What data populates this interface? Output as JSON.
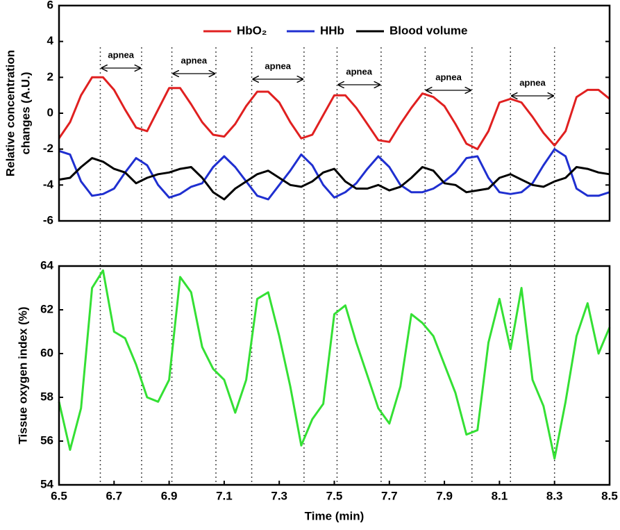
{
  "chart_data": [
    {
      "type": "line",
      "ylabel_lines": [
        "Relative concentration",
        "changes (A.U.)"
      ],
      "x": [
        6.5,
        6.54,
        6.58,
        6.62,
        6.66,
        6.7,
        6.74,
        6.78,
        6.82,
        6.86,
        6.9,
        6.94,
        6.98,
        7.02,
        7.06,
        7.1,
        7.14,
        7.18,
        7.22,
        7.26,
        7.3,
        7.34,
        7.38,
        7.42,
        7.46,
        7.5,
        7.54,
        7.58,
        7.62,
        7.66,
        7.7,
        7.74,
        7.78,
        7.82,
        7.86,
        7.9,
        7.94,
        7.98,
        8.02,
        8.06,
        8.1,
        8.14,
        8.18,
        8.22,
        8.26,
        8.3,
        8.34,
        8.38,
        8.42,
        8.46,
        8.5
      ],
      "series": [
        {
          "name": "HbO₂",
          "color": "#e02020",
          "values": [
            -1.4,
            -0.5,
            1.0,
            2.0,
            2.0,
            1.3,
            0.2,
            -0.8,
            -1.0,
            0.2,
            1.4,
            1.4,
            0.5,
            -0.5,
            -1.2,
            -1.3,
            -0.6,
            0.4,
            1.2,
            1.2,
            0.6,
            -0.5,
            -1.4,
            -1.2,
            -0.1,
            1.0,
            1.0,
            0.3,
            -0.6,
            -1.5,
            -1.6,
            -0.6,
            0.3,
            1.1,
            0.9,
            0.4,
            -0.6,
            -1.7,
            -2.0,
            -1.0,
            0.6,
            0.8,
            0.6,
            -0.2,
            -1.1,
            -1.8,
            -1.0,
            0.9,
            1.3,
            1.3,
            0.8
          ]
        },
        {
          "name": "HHb",
          "color": "#1f2fd0",
          "values": [
            -2.1,
            -2.3,
            -3.8,
            -4.6,
            -4.5,
            -4.2,
            -3.3,
            -2.5,
            -2.9,
            -4.0,
            -4.7,
            -4.5,
            -4.1,
            -3.9,
            -3.0,
            -2.4,
            -3.0,
            -3.8,
            -4.6,
            -4.8,
            -4.0,
            -3.2,
            -2.3,
            -2.9,
            -4.0,
            -4.7,
            -4.4,
            -3.9,
            -3.1,
            -2.4,
            -3.0,
            -4.0,
            -4.4,
            -4.4,
            -4.2,
            -3.8,
            -3.3,
            -2.5,
            -2.4,
            -3.6,
            -4.4,
            -4.5,
            -4.4,
            -3.9,
            -2.9,
            -2.0,
            -2.4,
            -4.2,
            -4.6,
            -4.6,
            -4.4
          ]
        },
        {
          "name": "Blood volume",
          "color": "#000000",
          "values": [
            -3.7,
            -3.6,
            -3.0,
            -2.5,
            -2.7,
            -3.1,
            -3.3,
            -3.9,
            -3.6,
            -3.4,
            -3.3,
            -3.1,
            -3.0,
            -3.6,
            -4.4,
            -4.8,
            -4.2,
            -3.8,
            -3.4,
            -3.2,
            -3.6,
            -4.0,
            -4.1,
            -3.8,
            -3.3,
            -3.1,
            -3.8,
            -4.2,
            -4.2,
            -4.0,
            -4.3,
            -4.1,
            -3.6,
            -3.0,
            -3.2,
            -3.9,
            -4.0,
            -4.4,
            -4.3,
            -4.2,
            -3.6,
            -3.4,
            -3.7,
            -4.0,
            -4.1,
            -3.8,
            -3.6,
            -3.0,
            -3.1,
            -3.3,
            -3.4
          ]
        }
      ],
      "xlim": [
        6.5,
        8.5
      ],
      "ylim": [
        -6,
        6
      ],
      "yticks": [
        -6,
        -4,
        -2,
        0,
        2,
        4,
        6
      ],
      "apnea_periods": [
        {
          "label": "apnea",
          "start": 6.65,
          "end": 6.8
        },
        {
          "label": "apnea",
          "start": 6.91,
          "end": 7.07
        },
        {
          "label": "apnea",
          "start": 7.2,
          "end": 7.39
        },
        {
          "label": "apnea",
          "start": 7.51,
          "end": 7.67
        },
        {
          "label": "apnea",
          "start": 7.83,
          "end": 8.0
        },
        {
          "label": "apnea",
          "start": 8.14,
          "end": 8.3
        }
      ]
    },
    {
      "type": "line",
      "ylabel": "Tissue oxygen index (%)",
      "xlabel": "Time (min)",
      "x": [
        6.5,
        6.54,
        6.58,
        6.62,
        6.66,
        6.7,
        6.74,
        6.78,
        6.82,
        6.86,
        6.9,
        6.94,
        6.98,
        7.02,
        7.06,
        7.1,
        7.14,
        7.18,
        7.22,
        7.26,
        7.3,
        7.34,
        7.38,
        7.42,
        7.46,
        7.5,
        7.54,
        7.58,
        7.62,
        7.66,
        7.7,
        7.74,
        7.78,
        7.82,
        7.86,
        7.9,
        7.94,
        7.98,
        8.02,
        8.06,
        8.1,
        8.14,
        8.18,
        8.22,
        8.26,
        8.3,
        8.34,
        8.38,
        8.42,
        8.46,
        8.5
      ],
      "series": [
        {
          "color": "#34e034",
          "values": [
            57.8,
            55.6,
            57.5,
            63.0,
            63.8,
            61.0,
            60.7,
            59.5,
            58.0,
            57.8,
            58.8,
            63.5,
            62.8,
            60.3,
            59.3,
            58.8,
            57.3,
            58.8,
            62.5,
            62.8,
            60.8,
            58.5,
            55.8,
            57.0,
            57.7,
            61.8,
            62.2,
            60.5,
            59.0,
            57.5,
            56.8,
            58.5,
            61.8,
            61.4,
            60.8,
            59.5,
            58.2,
            56.3,
            56.5,
            60.5,
            62.5,
            60.2,
            63.0,
            58.8,
            57.6,
            55.2,
            57.8,
            60.8,
            62.3,
            60.0,
            61.2
          ]
        }
      ],
      "xlim": [
        6.5,
        8.5
      ],
      "ylim": [
        54,
        64
      ],
      "xticks": [
        6.5,
        6.7,
        6.9,
        7.1,
        7.3,
        7.5,
        7.7,
        7.9,
        8.1,
        8.3,
        8.5
      ],
      "yticks": [
        54,
        56,
        58,
        60,
        62,
        64
      ]
    }
  ]
}
